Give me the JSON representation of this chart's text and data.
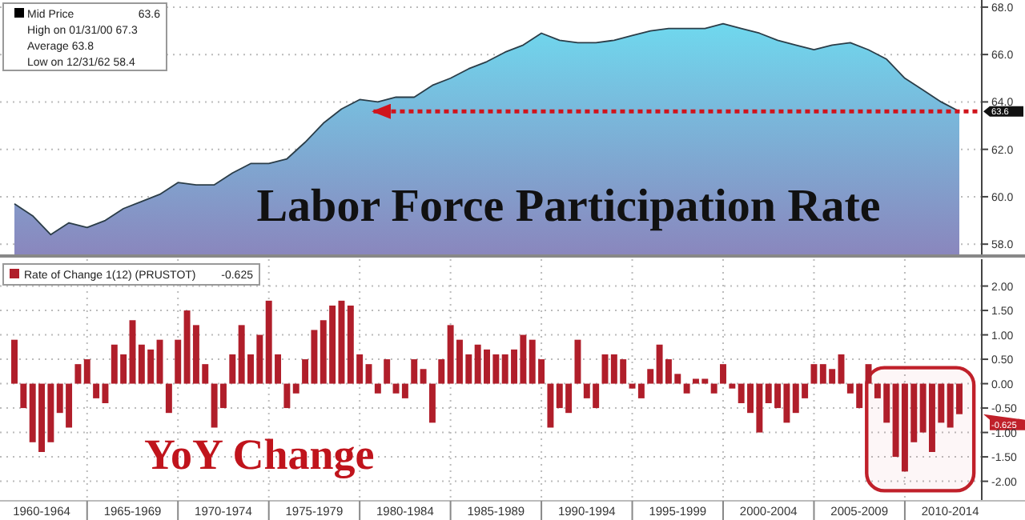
{
  "chart_data": [
    {
      "type": "area",
      "title": "Labor Force Participation Rate",
      "categories": [
        null,
        null,
        null,
        null,
        null,
        null,
        null,
        null,
        null,
        null,
        null,
        null,
        null,
        null,
        null,
        null,
        null,
        null,
        null,
        null,
        null,
        null,
        null,
        null,
        null,
        null,
        null,
        null,
        null,
        null,
        null,
        null,
        null,
        null,
        null,
        null,
        null,
        null,
        null,
        null,
        null,
        null,
        null,
        null,
        null,
        null,
        null,
        null,
        null,
        null,
        null,
        null,
        null
      ],
      "ylim": [
        57.5,
        68.3
      ],
      "yticks": [
        {
          "value": 58,
          "label": "58.0"
        },
        {
          "value": 60,
          "label": "60.0"
        },
        {
          "value": 62,
          "label": "62.0"
        },
        {
          "value": 64,
          "label": "64.0"
        },
        {
          "value": 66,
          "label": "66.0"
        },
        {
          "value": 68,
          "label": "68.0"
        }
      ],
      "tick_labels": "y",
      "grid": true,
      "legend": "top left",
      "series": [
        {
          "name": "Mid Price",
          "color": "#6fd8ee",
          "values": [
            59.7,
            59.2,
            58.4,
            58.9,
            58.7,
            59.0,
            59.5,
            59.8,
            60.1,
            60.6,
            60.5,
            60.5,
            61.0,
            61.4,
            61.4,
            61.6,
            62.3,
            63.1,
            63.7,
            64.1,
            64.0,
            64.2,
            64.2,
            64.7,
            65.0,
            65.4,
            65.7,
            66.1,
            66.4,
            66.9,
            66.6,
            66.5,
            66.5,
            66.6,
            66.8,
            67.0,
            67.1,
            67.1,
            67.1,
            67.3,
            67.1,
            66.9,
            66.6,
            66.4,
            66.2,
            66.4,
            66.5,
            66.2,
            65.8,
            65.0,
            64.5,
            64.0,
            63.6
          ]
        }
      ],
      "ref_lines": [
        {
          "axis": "y",
          "value": 63.6,
          "label": "63.6",
          "color": "#d0141c",
          "line_style": "dotted"
        }
      ],
      "annotations": [
        "63.6",
        "High on 01/31/00 67.3",
        "Average 63.8",
        "Low on 12/31/62 58.4"
      ]
    },
    {
      "type": "bar",
      "title": "YoY Change",
      "categories": [
        null,
        null,
        null,
        "1960-1964",
        null,
        null,
        null,
        null,
        null,
        null,
        null,
        null,
        null,
        "1965-1969",
        null,
        null,
        null,
        null,
        null,
        null,
        null,
        null,
        null,
        "1970-1974",
        null,
        null,
        null,
        null,
        null,
        null,
        null,
        null,
        null,
        "1975-1979",
        null,
        null,
        null,
        null,
        null,
        null,
        null,
        null,
        null,
        "1980-1984",
        null,
        null,
        null,
        null,
        null,
        null,
        null,
        null,
        null,
        "1985-1989",
        null,
        null,
        null,
        null,
        null,
        null,
        null,
        null,
        null,
        "1990-1994",
        null,
        null,
        null,
        null,
        null,
        null,
        null,
        null,
        null,
        "1995-1999",
        null,
        null,
        null,
        null,
        null,
        null,
        null,
        null,
        null,
        "2000-2004",
        null,
        null,
        null,
        null,
        null,
        null,
        null,
        null,
        null,
        "2005-2009",
        null,
        null,
        null,
        null,
        null,
        null,
        null,
        null,
        null,
        "2010-2014",
        null
      ],
      "ylim": [
        -2.4,
        2.55
      ],
      "yticks": [
        {
          "value": -2,
          "label": "-2.00"
        },
        {
          "value": -1.5,
          "label": "-1.50"
        },
        {
          "value": -1,
          "label": "-1.00"
        },
        {
          "value": -0.5,
          "label": "-0.50"
        },
        {
          "value": 0,
          "label": "0.00"
        },
        {
          "value": 0.5,
          "label": "0.50"
        },
        {
          "value": 1,
          "label": "1.00"
        },
        {
          "value": 1.5,
          "label": "1.50"
        },
        {
          "value": 2,
          "label": "2.00"
        }
      ],
      "grid": true,
      "legend": "top left",
      "series": [
        {
          "name": "Rate of Change 1(12) (PRUSTOT)",
          "color": "#b01e2a",
          "values": [
            0.9,
            -0.5,
            -1.2,
            -1.4,
            -1.2,
            -0.6,
            -0.9,
            0.4,
            0.5,
            -0.3,
            -0.4,
            0.8,
            0.6,
            1.3,
            0.8,
            0.7,
            0.9,
            -0.6,
            0.9,
            1.5,
            1.2,
            0.4,
            -0.9,
            -0.5,
            0.6,
            1.2,
            0.6,
            1.0,
            1.7,
            0.6,
            -0.5,
            -0.2,
            0.5,
            1.1,
            1.3,
            1.6,
            1.7,
            1.6,
            0.6,
            0.4,
            -0.2,
            0.5,
            -0.2,
            -0.3,
            0.5,
            0.3,
            -0.8,
            0.5,
            1.2,
            0.9,
            0.6,
            0.8,
            0.7,
            0.6,
            0.6,
            0.7,
            1.0,
            0.9,
            0.5,
            -0.9,
            -0.5,
            -0.6,
            0.9,
            -0.3,
            -0.5,
            0.6,
            0.6,
            0.5,
            -0.1,
            -0.3,
            0.3,
            0.8,
            0.5,
            0.2,
            -0.2,
            0.1,
            0.1,
            -0.2,
            0.4,
            -0.1,
            -0.4,
            -0.6,
            -1.0,
            -0.4,
            -0.5,
            -0.8,
            -0.6,
            -0.3,
            0.4,
            0.4,
            0.3,
            0.6,
            -0.2,
            -0.5,
            0.4,
            -0.3,
            -0.8,
            -1.5,
            -1.8,
            -1.2,
            -1.0,
            -1.4,
            -0.8,
            -0.9,
            -0.625
          ]
        }
      ],
      "annotations": [
        "-0.625",
        "-0.625"
      ]
    }
  ]
}
